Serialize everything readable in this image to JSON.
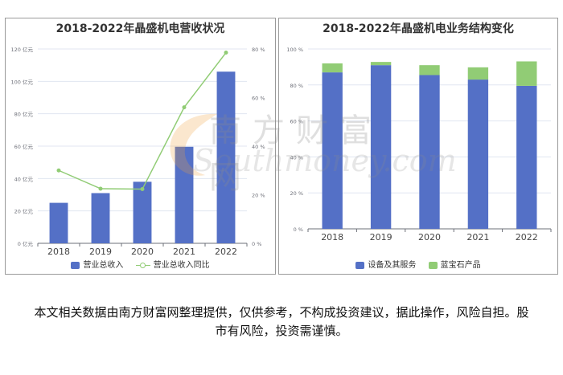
{
  "disclaimer": "本文相关数据由南方财富网整理提供，仅供参考，不构成投资建议，据此操作，风险自担。股市有风险，投资需谨慎。",
  "watermark": {
    "cn": "南方财富网",
    "en": "Southmoney.com"
  },
  "colors": {
    "bar": "#5470c6",
    "line": "#91cc75",
    "axis": "#6e7079",
    "grid": "#e0e6f1"
  },
  "chart_data": [
    {
      "type": "bar",
      "title": "2018-2022年晶盛机电营收状况",
      "categories": [
        "2018",
        "2019",
        "2020",
        "2021",
        "2022"
      ],
      "series": [
        {
          "name": "营业总收入",
          "type": "bar",
          "axis": "left",
          "values": [
            25,
            31,
            38,
            59.6,
            106
          ]
        },
        {
          "name": "营业总收入同比",
          "type": "line",
          "axis": "right",
          "values": [
            30,
            22.5,
            22.3,
            56,
            78.5
          ]
        }
      ],
      "ylim": [
        0,
        120
      ],
      "yticks": [
        "0 亿元",
        "20 亿元",
        "40 亿元",
        "60 亿元",
        "80 亿元",
        "100 亿元",
        "120 亿元"
      ],
      "y2lim": [
        0,
        80
      ],
      "y2ticks": [
        "0 %",
        "20 %",
        "40 %",
        "60 %",
        "80 %"
      ],
      "grid": true,
      "legend_position": "bottom"
    },
    {
      "type": "bar",
      "stacked": true,
      "title": "2018-2022年晶盛机电业务结构变化",
      "categories": [
        "2018",
        "2019",
        "2020",
        "2021",
        "2022"
      ],
      "series": [
        {
          "name": "设备及其服务",
          "values": [
            87,
            91,
            85.5,
            83,
            79.5
          ]
        },
        {
          "name": "蓝宝石产品",
          "values": [
            5,
            1.8,
            5.5,
            6.8,
            13.6
          ]
        }
      ],
      "series_colors": [
        "#5470c6",
        "#91cc75"
      ],
      "ylim": [
        0,
        100
      ],
      "yticks": [
        "0 %",
        "20 %",
        "40 %",
        "60 %",
        "80 %",
        "100 %"
      ],
      "grid": true,
      "legend_position": "bottom"
    }
  ]
}
